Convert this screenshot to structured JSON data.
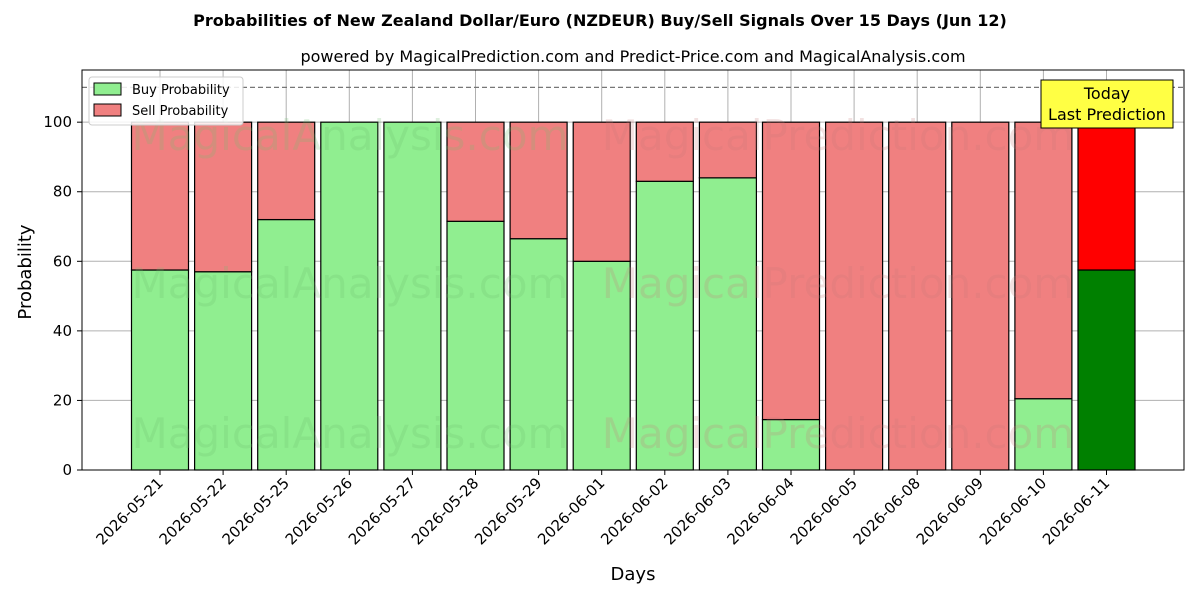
{
  "chart_data": {
    "type": "bar",
    "stacked": true,
    "title": "Probabilities of New Zealand Dollar/Euro (NZDEUR) Buy/Sell Signals Over 15 Days (Jun 12)",
    "subtitle": "powered by MagicalPrediction.com and Predict-Price.com and MagicalAnalysis.com",
    "xlabel": "Days",
    "ylabel": "Probability",
    "ylim": [
      0,
      115
    ],
    "yticks": [
      0,
      20,
      40,
      60,
      80,
      100
    ],
    "reference_line": 110,
    "grid": true,
    "legend_position": "top-left",
    "categories": [
      "2026-05-21",
      "2026-05-22",
      "2026-05-25",
      "2026-05-26",
      "2026-05-27",
      "2026-05-28",
      "2026-05-29",
      "2026-06-01",
      "2026-06-02",
      "2026-06-03",
      "2026-06-04",
      "2026-06-05",
      "2026-06-08",
      "2026-06-09",
      "2026-06-10",
      "2026-06-11"
    ],
    "series": [
      {
        "name": "Buy Probability",
        "color": "#90ee90",
        "highlight_color": "#008000",
        "values": [
          57.5,
          57,
          72,
          100,
          100,
          71.5,
          66.5,
          60,
          83,
          84,
          14.5,
          0,
          0,
          0,
          20.5,
          57.5
        ]
      },
      {
        "name": "Sell Probability",
        "color": "#f08080",
        "highlight_color": "#ff0000",
        "values": [
          42.5,
          43,
          28,
          0,
          0,
          28.5,
          33.5,
          40,
          17,
          16,
          85.5,
          100,
          100,
          100,
          79.5,
          42.5
        ]
      }
    ],
    "highlight_index": 15,
    "annotation": {
      "line1": "Today",
      "line2": "Last Prediction",
      "color": "#ffff44"
    },
    "watermarks": [
      "MagicalAnalysis.com",
      "MagicalPrediction.com"
    ]
  }
}
